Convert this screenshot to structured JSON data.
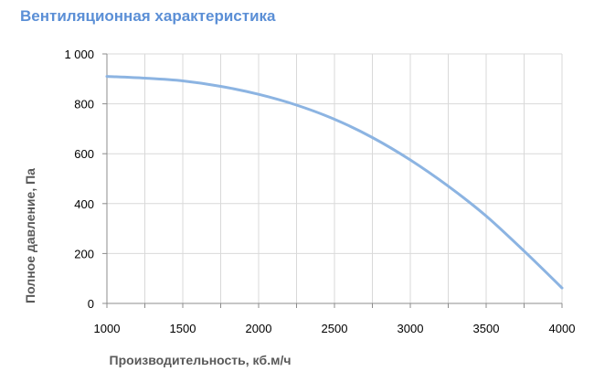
{
  "title": "Вентиляционная характеристика",
  "chart_data": {
    "type": "line",
    "title": "Вентиляционная характеристика",
    "xlabel": "Производительность, кб.м/ч",
    "ylabel": "Полное  давление, Па",
    "xlim": [
      1000,
      4000
    ],
    "ylim": [
      0,
      1000
    ],
    "x_ticks": [
      1000,
      1500,
      2000,
      2500,
      3000,
      3500,
      4000
    ],
    "x_tick_labels": [
      "1000",
      "1500",
      "2000",
      "2500",
      "3000",
      "3500",
      "4000"
    ],
    "y_ticks": [
      0,
      200,
      400,
      600,
      800,
      1000
    ],
    "y_tick_labels": [
      "0",
      "200",
      "400",
      "600",
      "800",
      "1 000"
    ],
    "grid": true,
    "series": [
      {
        "color": "#8cb4e2",
        "x": [
          1000,
          1250,
          1500,
          1750,
          2000,
          2250,
          2500,
          2750,
          3000,
          3250,
          3500,
          3750,
          4000
        ],
        "y": [
          910,
          903,
          892,
          870,
          838,
          795,
          738,
          665,
          575,
          470,
          350,
          210,
          62
        ]
      }
    ]
  }
}
